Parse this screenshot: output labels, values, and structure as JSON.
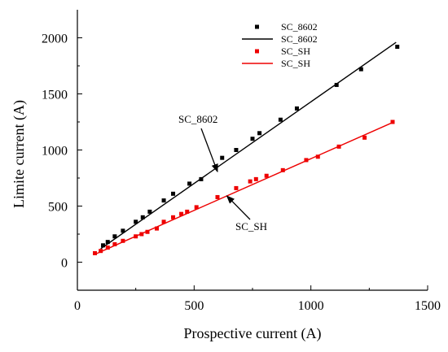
{
  "chart_data": {
    "type": "scatter",
    "xlabel": "Prospective current (A)",
    "ylabel": "Limite current (A)",
    "xlim": [
      0,
      1500
    ],
    "ylim": [
      -250,
      2250
    ],
    "xticks": [
      0,
      500,
      1000,
      1500
    ],
    "yticks": [
      0,
      500,
      1000,
      1500,
      2000
    ],
    "grid": false,
    "legend_position": "top-right",
    "series": [
      {
        "name": "SC_8602",
        "kind": "points",
        "color": "#000000",
        "points": [
          [
            110,
            150
          ],
          [
            130,
            180
          ],
          [
            160,
            230
          ],
          [
            195,
            280
          ],
          [
            250,
            360
          ],
          [
            280,
            400
          ],
          [
            310,
            450
          ],
          [
            370,
            550
          ],
          [
            410,
            610
          ],
          [
            480,
            700
          ],
          [
            530,
            740
          ],
          [
            620,
            930
          ],
          [
            680,
            1000
          ],
          [
            750,
            1100
          ],
          [
            780,
            1150
          ],
          [
            870,
            1270
          ],
          [
            940,
            1370
          ],
          [
            1110,
            1580
          ],
          [
            1215,
            1720
          ],
          [
            1370,
            1920
          ]
        ]
      },
      {
        "name": "SC_8602",
        "kind": "fit-line",
        "color": "#000000",
        "points": [
          [
            100,
            120
          ],
          [
            1365,
            1960
          ]
        ]
      },
      {
        "name": "SC_SH",
        "kind": "points",
        "color": "#ee0000",
        "points": [
          [
            75,
            80
          ],
          [
            100,
            100
          ],
          [
            130,
            130
          ],
          [
            160,
            160
          ],
          [
            195,
            190
          ],
          [
            250,
            230
          ],
          [
            275,
            250
          ],
          [
            300,
            270
          ],
          [
            340,
            300
          ],
          [
            370,
            360
          ],
          [
            410,
            400
          ],
          [
            445,
            430
          ],
          [
            470,
            450
          ],
          [
            510,
            490
          ],
          [
            600,
            580
          ],
          [
            680,
            660
          ],
          [
            740,
            720
          ],
          [
            765,
            740
          ],
          [
            810,
            770
          ],
          [
            880,
            820
          ],
          [
            980,
            910
          ],
          [
            1030,
            940
          ],
          [
            1120,
            1030
          ],
          [
            1230,
            1110
          ],
          [
            1350,
            1250
          ]
        ]
      },
      {
        "name": "SC_SH",
        "kind": "fit-line",
        "color": "#ee0000",
        "points": [
          [
            75,
            70
          ],
          [
            1350,
            1245
          ]
        ]
      }
    ],
    "annotations": [
      {
        "text": "SC_8602",
        "points_to": "SC_8602"
      },
      {
        "text": "SC_SH",
        "points_to": "SC_SH"
      }
    ]
  }
}
